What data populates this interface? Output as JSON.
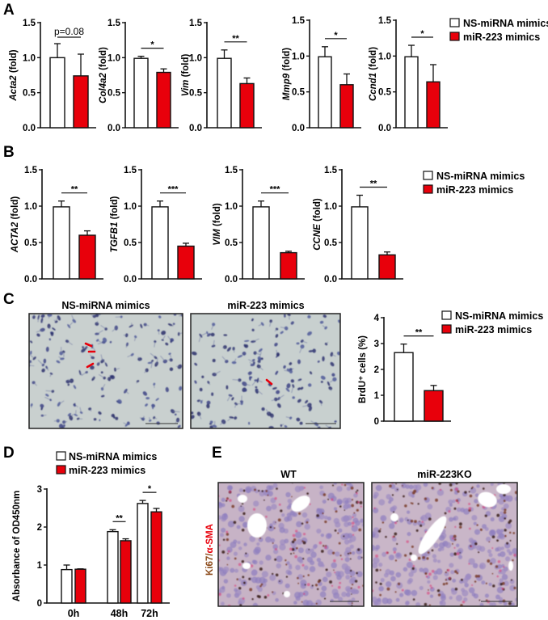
{
  "colors": {
    "control": "#ffffff",
    "treated": "#e8000b",
    "axis": "#111111",
    "cell_bg": "#c9d0cf",
    "tissue_bg": "#c9b4c8"
  },
  "legend": {
    "control_label": "NS-miRNA mimics",
    "treated_label": "miR-223 mimics"
  },
  "panels": {
    "A": {
      "letter": "A"
    },
    "B": {
      "letter": "B"
    },
    "C": {
      "letter": "C",
      "image_titles": [
        "NS-miRNA mimics",
        "miR-223 mimics"
      ]
    },
    "D": {
      "letter": "D"
    },
    "E": {
      "letter": "E",
      "image_titles": [
        "WT",
        "miR-223KO"
      ],
      "side_label_part1": "Ki67/",
      "side_label_part2": "α-SMA"
    }
  },
  "chart_data": [
    {
      "id": "A1",
      "type": "bar",
      "panel": "A",
      "ylabel_italic": "Acta2",
      "ylabel_rest": " (fold)",
      "yticks": [
        "0.0",
        "0.5",
        "1.0",
        "1.5"
      ],
      "ylim": [
        0,
        1.5
      ],
      "series": [
        {
          "name": "NS-miRNA mimics",
          "values": [
            1.0
          ],
          "errors": [
            0.2
          ]
        },
        {
          "name": "miR-223 mimics",
          "values": [
            0.74
          ],
          "errors": [
            0.31
          ]
        }
      ],
      "significance": "p=0.08"
    },
    {
      "id": "A2",
      "type": "bar",
      "panel": "A",
      "ylabel_italic": "Col4a2",
      "ylabel_rest": " (fold)",
      "yticks": [
        "0.0",
        "0.5",
        "1.0",
        "1.5"
      ],
      "ylim": [
        0,
        1.5
      ],
      "series": [
        {
          "name": "NS-miRNA mimics",
          "values": [
            0.99
          ],
          "errors": [
            0.03
          ]
        },
        {
          "name": "miR-223 mimics",
          "values": [
            0.79
          ],
          "errors": [
            0.05
          ]
        }
      ],
      "significance": "*"
    },
    {
      "id": "A3",
      "type": "bar",
      "panel": "A",
      "ylabel_italic": "Vim",
      "ylabel_rest": " (fold)",
      "yticks": [
        "0.0",
        "0.5",
        "1.0",
        "1.5"
      ],
      "ylim": [
        0,
        1.5
      ],
      "series": [
        {
          "name": "NS-miRNA mimics",
          "values": [
            0.99
          ],
          "errors": [
            0.12
          ]
        },
        {
          "name": "miR-223 mimics",
          "values": [
            0.63
          ],
          "errors": [
            0.08
          ]
        }
      ],
      "significance": "**"
    },
    {
      "id": "A4",
      "type": "bar",
      "panel": "A",
      "ylabel_italic": "Mmp9",
      "ylabel_rest": " (fold)",
      "yticks": [
        "0.0",
        "0.5",
        "1.0",
        "1.5"
      ],
      "ylim": [
        0,
        1.5
      ],
      "series": [
        {
          "name": "NS-miRNA mimics",
          "values": [
            0.99
          ],
          "errors": [
            0.14
          ]
        },
        {
          "name": "miR-223 mimics",
          "values": [
            0.6
          ],
          "errors": [
            0.15
          ]
        }
      ],
      "significance": "*"
    },
    {
      "id": "A5",
      "type": "bar",
      "panel": "A",
      "ylabel_italic": "Ccnd1",
      "ylabel_rest": " (fold)",
      "yticks": [
        "0.0",
        "0.5",
        "1.0",
        "1.5"
      ],
      "ylim": [
        0,
        1.5
      ],
      "series": [
        {
          "name": "NS-miRNA mimics",
          "values": [
            0.99
          ],
          "errors": [
            0.16
          ]
        },
        {
          "name": "miR-223 mimics",
          "values": [
            0.64
          ],
          "errors": [
            0.24
          ]
        }
      ],
      "significance": "*"
    },
    {
      "id": "B1",
      "type": "bar",
      "panel": "B",
      "ylabel_italic": "ACTA2",
      "ylabel_rest": " (fold)",
      "yticks": [
        "0.0",
        "0.5",
        "1.0",
        "1.5"
      ],
      "ylim": [
        0,
        1.5
      ],
      "series": [
        {
          "name": "NS-miRNA mimics",
          "values": [
            0.99
          ],
          "errors": [
            0.08
          ]
        },
        {
          "name": "miR-223 mimics",
          "values": [
            0.6
          ],
          "errors": [
            0.06
          ]
        }
      ],
      "significance": "**"
    },
    {
      "id": "B2",
      "type": "bar",
      "panel": "B",
      "ylabel_italic": "TGFB1",
      "ylabel_rest": " (fold)",
      "yticks": [
        "0.0",
        "0.5",
        "1.0",
        "1.5"
      ],
      "ylim": [
        0,
        1.5
      ],
      "series": [
        {
          "name": "NS-miRNA mimics",
          "values": [
            0.99
          ],
          "errors": [
            0.08
          ]
        },
        {
          "name": "miR-223 mimics",
          "values": [
            0.45
          ],
          "errors": [
            0.04
          ]
        }
      ],
      "significance": "***"
    },
    {
      "id": "B3",
      "type": "bar",
      "panel": "B",
      "ylabel_italic": "VIM",
      "ylabel_rest": " (fold)",
      "yticks": [
        "0.0",
        "0.5",
        "1.0",
        "1.5"
      ],
      "ylim": [
        0,
        1.5
      ],
      "series": [
        {
          "name": "NS-miRNA mimics",
          "values": [
            0.99
          ],
          "errors": [
            0.08
          ]
        },
        {
          "name": "miR-223 mimics",
          "values": [
            0.36
          ],
          "errors": [
            0.02
          ]
        }
      ],
      "significance": "***"
    },
    {
      "id": "B4",
      "type": "bar",
      "panel": "B",
      "ylabel_italic": "CCNE",
      "ylabel_rest": " (fold)",
      "yticks": [
        "0.0",
        "0.5",
        "1.0",
        "1.5"
      ],
      "ylim": [
        0,
        1.5
      ],
      "series": [
        {
          "name": "NS-miRNA mimics",
          "values": [
            0.99
          ],
          "errors": [
            0.16
          ]
        },
        {
          "name": "miR-223 mimics",
          "values": [
            0.33
          ],
          "errors": [
            0.04
          ]
        }
      ],
      "significance": "**"
    },
    {
      "id": "C1",
      "type": "bar",
      "panel": "C",
      "ylabel_italic": "",
      "ylabel_rest": "BrdU⁺ cells (%)",
      "yticks": [
        "0",
        "1",
        "2",
        "3",
        "4"
      ],
      "ylim": [
        0,
        4
      ],
      "series": [
        {
          "name": "NS-miRNA mimics",
          "values": [
            2.65
          ],
          "errors": [
            0.33
          ]
        },
        {
          "name": "miR-223 mimics",
          "values": [
            1.18
          ],
          "errors": [
            0.2
          ]
        }
      ],
      "significance": "**"
    },
    {
      "id": "D1",
      "type": "bar",
      "panel": "D",
      "ylabel": "Absorbance of OD450nm",
      "categories": [
        "0h",
        "48h",
        "72h"
      ],
      "yticks": [
        "0",
        "1",
        "2",
        "3"
      ],
      "ylim": [
        0,
        3
      ],
      "series": [
        {
          "name": "NS-miRNA mimics",
          "values": [
            0.88,
            1.88,
            2.62
          ],
          "errors": [
            0.12,
            0.05,
            0.08
          ]
        },
        {
          "name": "miR-223 mimics",
          "values": [
            0.89,
            1.64,
            2.4
          ],
          "errors": [
            0.01,
            0.05,
            0.09
          ]
        }
      ],
      "significance": [
        "",
        "**",
        "*"
      ]
    }
  ]
}
